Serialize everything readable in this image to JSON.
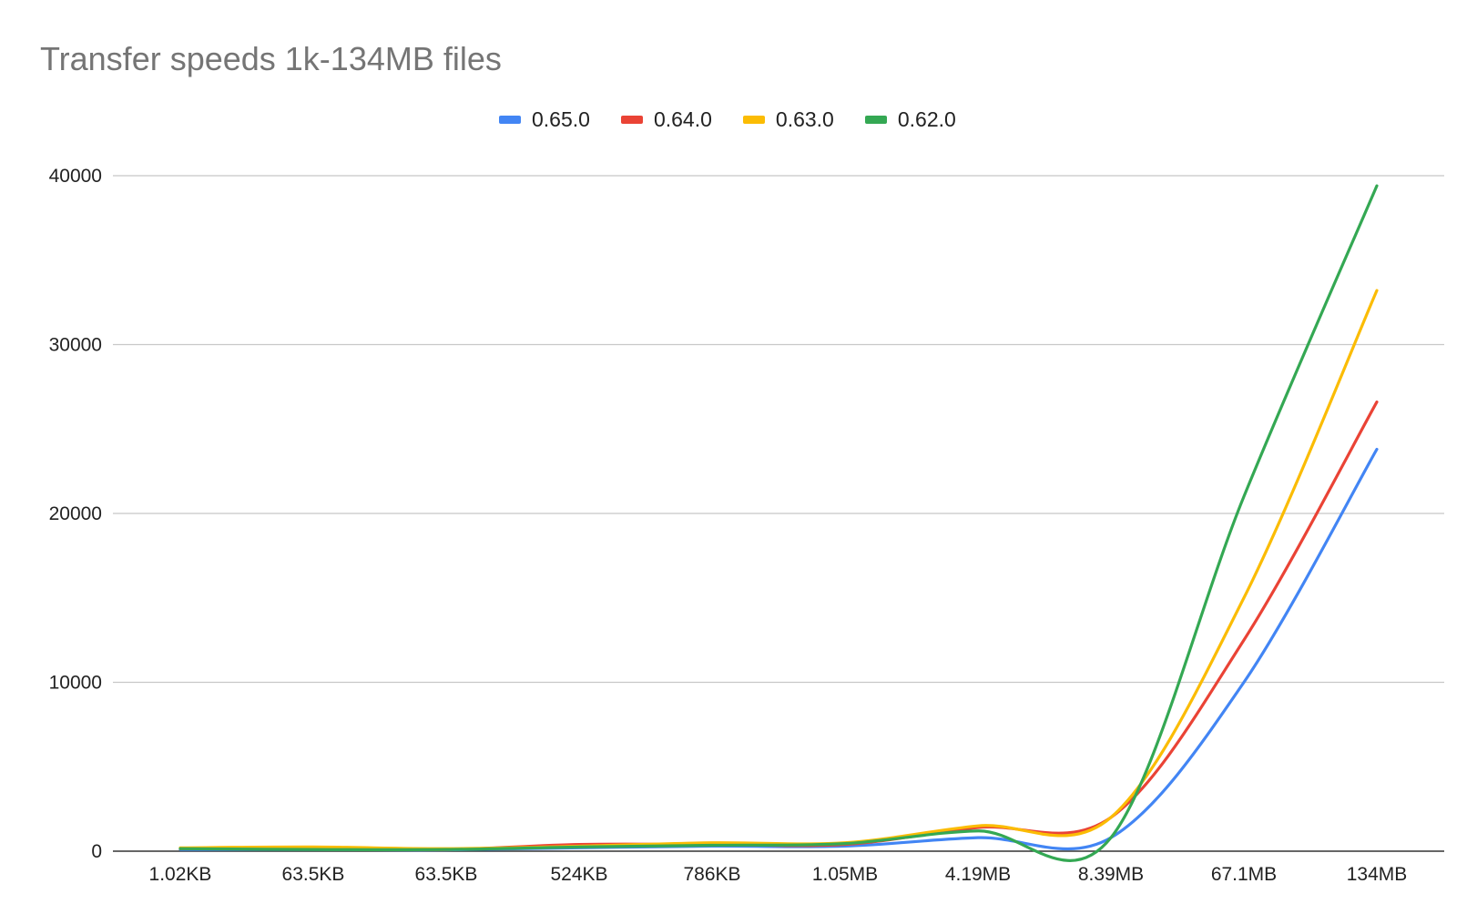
{
  "chart_data": {
    "type": "line",
    "title": "Transfer speeds 1k-134MB files",
    "xlabel": "",
    "ylabel": "",
    "categories": [
      "1.02KB",
      "63.5KB",
      "63.5KB",
      "524KB",
      "786KB",
      "1.05MB",
      "4.19MB",
      "8.39MB",
      "67.1MB",
      "134MB"
    ],
    "ylim": [
      0,
      40000
    ],
    "yticks": [
      "0",
      "10000",
      "20000",
      "30000",
      "40000"
    ],
    "grid": true,
    "smooth": true,
    "legend_position": "top-center",
    "series": [
      {
        "name": "0.65.0",
        "color": "#4285F4",
        "values": [
          100,
          100,
          80,
          200,
          300,
          300,
          800,
          800,
          10000,
          23800
        ]
      },
      {
        "name": "0.64.0",
        "color": "#EA4335",
        "values": [
          150,
          150,
          100,
          400,
          400,
          400,
          1400,
          2000,
          12500,
          26600
        ]
      },
      {
        "name": "0.63.0",
        "color": "#FBBC04",
        "values": [
          200,
          250,
          150,
          300,
          500,
          500,
          1500,
          2000,
          15000,
          33200
        ]
      },
      {
        "name": "0.62.0",
        "color": "#34A853",
        "values": [
          150,
          100,
          100,
          250,
          350,
          450,
          1200,
          800,
          21000,
          39400
        ]
      }
    ]
  }
}
